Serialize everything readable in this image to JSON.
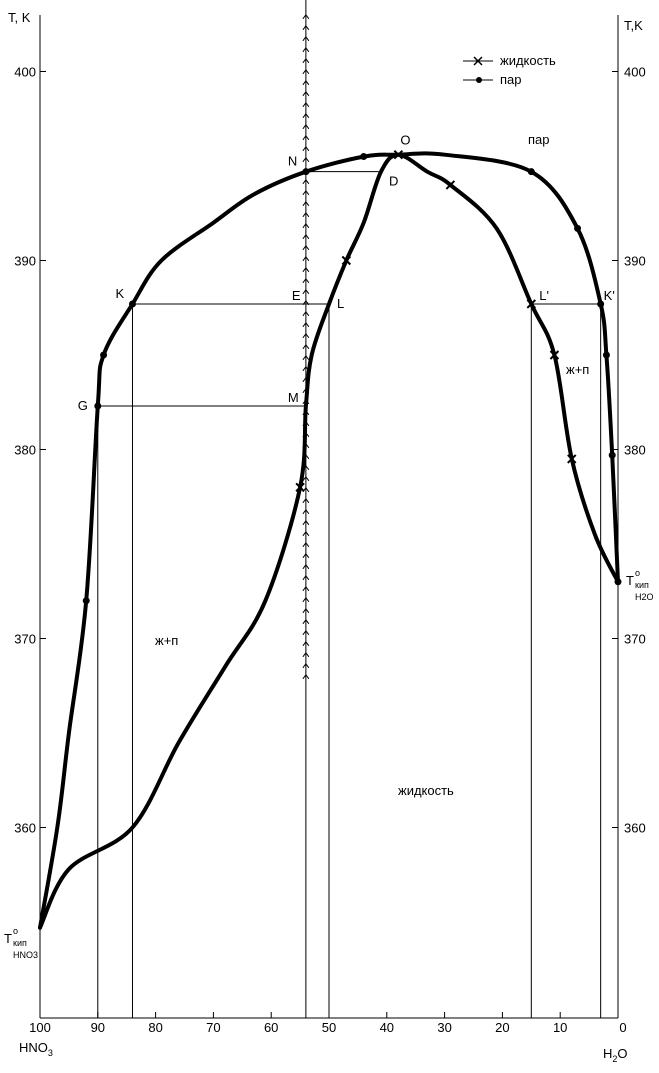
{
  "chart_data": {
    "type": "line",
    "xlabel_left": "HNO3",
    "xlabel_right": "H2O",
    "ylabel_left": "T, K",
    "ylabel_right": "T,K",
    "xlim": [
      100,
      0
    ],
    "ylim": [
      349,
      405
    ],
    "x_ticks": [
      100,
      90,
      80,
      70,
      60,
      50,
      40,
      30,
      20,
      10,
      0
    ],
    "y_ticks": [
      360,
      370,
      380,
      390,
      400
    ],
    "legend": {
      "placement": "top-right",
      "liquid": "жидкость",
      "vapor": "пар"
    },
    "series": [
      {
        "name": "жидкость",
        "marker": "cross",
        "points": [
          [
            100,
            354.7
          ],
          [
            95,
            357.8
          ],
          [
            84,
            360
          ],
          [
            76,
            364.5
          ],
          [
            68,
            368.5
          ],
          [
            61,
            372
          ],
          [
            55,
            378
          ],
          [
            54,
            382.3
          ],
          [
            53,
            385
          ],
          [
            50,
            387.7
          ],
          [
            47,
            390
          ],
          [
            44,
            392
          ],
          [
            41,
            394.7
          ],
          [
            38,
            395.6
          ],
          [
            33,
            394.7
          ],
          [
            29,
            394
          ],
          [
            21,
            391.7
          ],
          [
            15,
            387.7
          ],
          [
            11,
            385
          ],
          [
            8,
            379.5
          ],
          [
            4,
            375.5
          ],
          [
            0,
            373
          ]
        ]
      },
      {
        "name": "пар",
        "marker": "dot",
        "points": [
          [
            100,
            354.7
          ],
          [
            97,
            360
          ],
          [
            95,
            365
          ],
          [
            92,
            372
          ],
          [
            90,
            382.3
          ],
          [
            89,
            385
          ],
          [
            84,
            387.7
          ],
          [
            79,
            390
          ],
          [
            70,
            392
          ],
          [
            63,
            393.5
          ],
          [
            54,
            394.7
          ],
          [
            44,
            395.5
          ],
          [
            38,
            395.6
          ],
          [
            30,
            395.6
          ],
          [
            15,
            394.7
          ],
          [
            7,
            391.7
          ],
          [
            3,
            387.7
          ],
          [
            2,
            385
          ],
          [
            1,
            379.7
          ],
          [
            0,
            373
          ]
        ]
      }
    ],
    "points": [
      {
        "label": "O",
        "x": 38,
        "y": 395.6
      },
      {
        "label": "N",
        "x": 54,
        "y": 394.7
      },
      {
        "label": "D",
        "x": 41,
        "y": 394.7
      },
      {
        "label": "K",
        "x": 84,
        "y": 387.7
      },
      {
        "label": "E",
        "x": 54,
        "y": 387.7
      },
      {
        "label": "L",
        "x": 50,
        "y": 387.7
      },
      {
        "label": "G",
        "x": 90,
        "y": 382.3
      },
      {
        "label": "M",
        "x": 54,
        "y": 382.3
      },
      {
        "label": "L'",
        "x": 15,
        "y": 387.7
      },
      {
        "label": "K'",
        "x": 3,
        "y": 387.7
      }
    ],
    "annotations": {
      "region_vapor": "пар",
      "region_liquid": "жидкость",
      "region_two_phase_left": "ж+п",
      "region_two_phase_right": "ж+п",
      "boil_left": "T",
      "boil_left_sup": "o",
      "boil_left_sub1": "кип",
      "boil_left_sub2": "HNO3",
      "boil_right": "T",
      "boil_right_sup": "o",
      "boil_right_sub1": "кип",
      "boil_right_sub2": "H2O"
    },
    "grid": false
  }
}
